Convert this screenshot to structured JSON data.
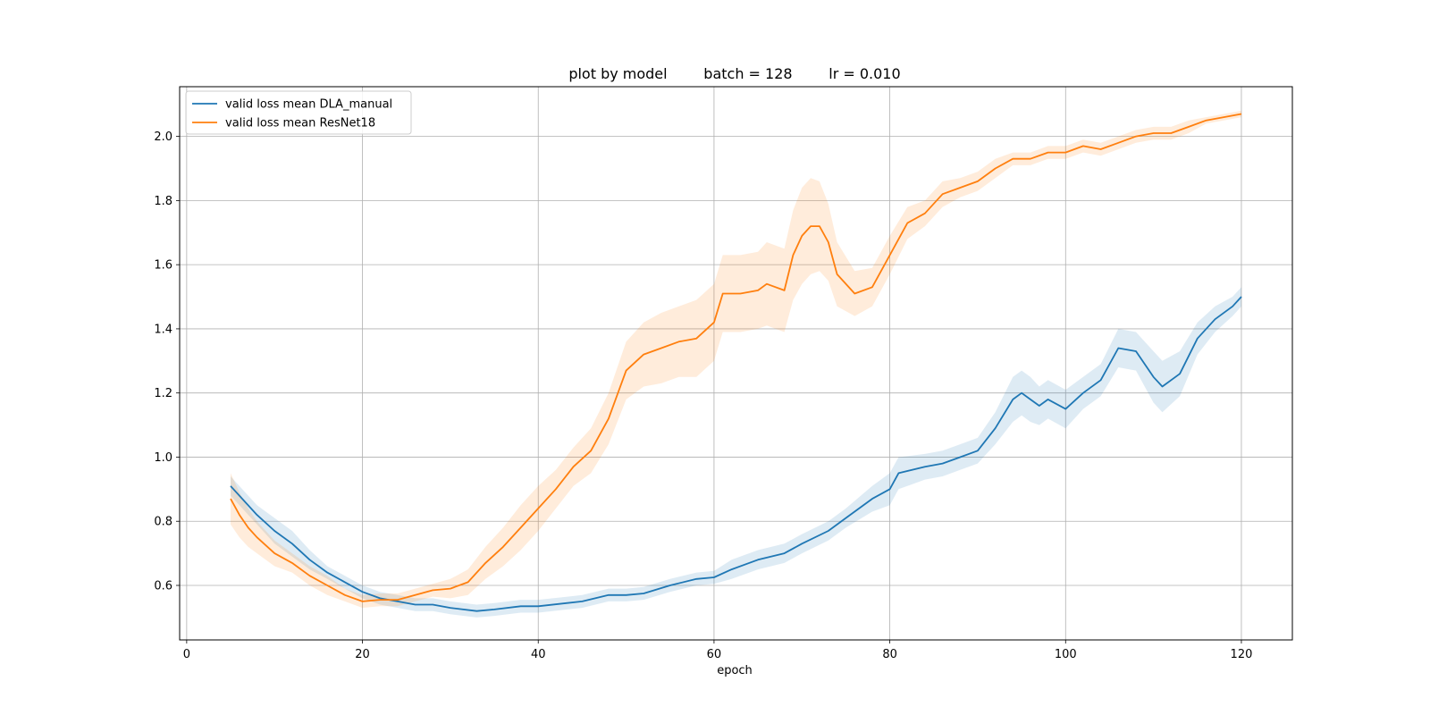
{
  "chart_data": {
    "type": "line",
    "title": "plot by model        batch = 128        lr = 0.010",
    "xlabel": "epoch",
    "ylabel": "",
    "xlim": [
      -0.8,
      125.8
    ],
    "ylim": [
      0.43,
      2.155
    ],
    "xticks": [
      0,
      20,
      40,
      60,
      80,
      100,
      120
    ],
    "yticks": [
      0.6,
      0.8,
      1.0,
      1.2,
      1.4,
      1.6,
      1.8,
      2.0
    ],
    "grid": true,
    "legend_position": "top-left",
    "series": [
      {
        "name": "valid loss mean DLA_manual",
        "color": "#1f77b4",
        "x": [
          5,
          8,
          10,
          12,
          14,
          16,
          18,
          20,
          22,
          24,
          26,
          28,
          30,
          33,
          35,
          38,
          40,
          45,
          48,
          50,
          52,
          55,
          58,
          60,
          62,
          65,
          68,
          70,
          73,
          75,
          78,
          80,
          81,
          84,
          86,
          88,
          90,
          92,
          94,
          95,
          96,
          97,
          98,
          100,
          102,
          104,
          106,
          108,
          110,
          111,
          113,
          115,
          117,
          119,
          120
        ],
        "y": [
          0.91,
          0.82,
          0.77,
          0.73,
          0.68,
          0.64,
          0.61,
          0.58,
          0.56,
          0.55,
          0.54,
          0.54,
          0.53,
          0.52,
          0.525,
          0.535,
          0.535,
          0.55,
          0.57,
          0.57,
          0.575,
          0.6,
          0.62,
          0.625,
          0.65,
          0.68,
          0.7,
          0.73,
          0.77,
          0.81,
          0.87,
          0.9,
          0.95,
          0.97,
          0.98,
          1.0,
          1.02,
          1.09,
          1.18,
          1.2,
          1.18,
          1.16,
          1.18,
          1.15,
          1.2,
          1.24,
          1.34,
          1.33,
          1.25,
          1.22,
          1.26,
          1.37,
          1.43,
          1.47,
          1.5
        ],
        "band": [
          0.03,
          0.03,
          0.04,
          0.04,
          0.03,
          0.02,
          0.02,
          0.02,
          0.02,
          0.02,
          0.02,
          0.02,
          0.02,
          0.02,
          0.02,
          0.02,
          0.02,
          0.02,
          0.02,
          0.02,
          0.02,
          0.02,
          0.02,
          0.02,
          0.03,
          0.03,
          0.03,
          0.03,
          0.03,
          0.03,
          0.04,
          0.05,
          0.05,
          0.04,
          0.04,
          0.04,
          0.04,
          0.05,
          0.07,
          0.07,
          0.07,
          0.06,
          0.06,
          0.06,
          0.05,
          0.05,
          0.06,
          0.06,
          0.08,
          0.08,
          0.07,
          0.05,
          0.04,
          0.03,
          0.03
        ]
      },
      {
        "name": "valid loss mean ResNet18",
        "color": "#ff7f0e",
        "x": [
          5,
          6,
          7,
          8,
          10,
          12,
          14,
          16,
          18,
          20,
          22,
          24,
          26,
          28,
          30,
          32,
          34,
          36,
          38,
          40,
          42,
          44,
          46,
          48,
          50,
          52,
          54,
          56,
          58,
          60,
          61,
          63,
          65,
          66,
          68,
          69,
          70,
          71,
          72,
          73,
          74,
          76,
          78,
          80,
          82,
          84,
          86,
          88,
          90,
          92,
          94,
          96,
          98,
          100,
          102,
          104,
          106,
          108,
          110,
          112,
          114,
          116,
          118,
          120
        ],
        "y": [
          0.87,
          0.82,
          0.78,
          0.75,
          0.7,
          0.67,
          0.63,
          0.6,
          0.57,
          0.55,
          0.555,
          0.555,
          0.57,
          0.585,
          0.59,
          0.61,
          0.67,
          0.72,
          0.78,
          0.84,
          0.9,
          0.97,
          1.02,
          1.12,
          1.27,
          1.32,
          1.34,
          1.36,
          1.37,
          1.42,
          1.51,
          1.51,
          1.52,
          1.54,
          1.52,
          1.63,
          1.69,
          1.72,
          1.72,
          1.67,
          1.57,
          1.51,
          1.53,
          1.63,
          1.73,
          1.76,
          1.82,
          1.84,
          1.86,
          1.9,
          1.93,
          1.93,
          1.95,
          1.95,
          1.97,
          1.96,
          1.98,
          2.0,
          2.01,
          2.01,
          2.03,
          2.05,
          2.06,
          2.07
        ],
        "band": [
          0.08,
          0.07,
          0.06,
          0.05,
          0.04,
          0.03,
          0.03,
          0.03,
          0.02,
          0.02,
          0.02,
          0.02,
          0.02,
          0.02,
          0.03,
          0.04,
          0.05,
          0.06,
          0.07,
          0.07,
          0.06,
          0.06,
          0.07,
          0.08,
          0.09,
          0.1,
          0.11,
          0.11,
          0.12,
          0.12,
          0.12,
          0.12,
          0.12,
          0.13,
          0.13,
          0.14,
          0.15,
          0.15,
          0.14,
          0.12,
          0.1,
          0.07,
          0.06,
          0.06,
          0.05,
          0.04,
          0.04,
          0.03,
          0.03,
          0.03,
          0.02,
          0.02,
          0.02,
          0.02,
          0.02,
          0.02,
          0.02,
          0.02,
          0.02,
          0.02,
          0.02,
          0.01,
          0.01,
          0.01
        ]
      }
    ]
  }
}
